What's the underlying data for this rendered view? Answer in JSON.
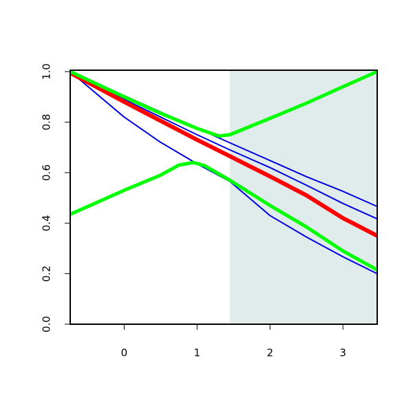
{
  "chart_data": {
    "type": "line",
    "xlim": [
      -0.74,
      3.47
    ],
    "ylim": [
      0,
      1
    ],
    "xticks": [
      0,
      1,
      2,
      3
    ],
    "yticks": [
      {
        "value": 0,
        "label": "0.0"
      },
      {
        "value": 0.2,
        "label": "0.2"
      },
      {
        "value": 0.4,
        "label": "0.4"
      },
      {
        "value": 0.6,
        "label": "0.6"
      },
      {
        "value": 0.8,
        "label": "0.8"
      },
      {
        "value": 1,
        "label": "1.0"
      }
    ],
    "shaded_region": {
      "x": [
        1.45,
        3.47
      ],
      "color": "#e0ecec"
    },
    "series": [
      {
        "color": "#0000dd",
        "line_width": 2,
        "x": [
          -0.74,
          0,
          0.5,
          1,
          1.45,
          2,
          2.5,
          3,
          3.47
        ],
        "values": [
          1.0,
          0.905,
          0.84,
          0.776,
          0.718,
          0.648,
          0.584,
          0.526,
          0.466
        ]
      },
      {
        "color": "#0000dd",
        "line_width": 2,
        "x": [
          -0.74,
          0,
          0.5,
          1,
          1.45,
          2,
          2.5,
          3,
          3.47
        ],
        "values": [
          1.0,
          0.89,
          0.82,
          0.75,
          0.69,
          0.62,
          0.55,
          0.478,
          0.417
        ]
      },
      {
        "color": "#0000dd",
        "line_width": 2,
        "x": [
          -0.74,
          0,
          0.5,
          1,
          1.45,
          2,
          2.5,
          3,
          3.47
        ],
        "values": [
          1.0,
          0.82,
          0.72,
          0.635,
          0.565,
          0.43,
          0.345,
          0.267,
          0.2
        ]
      },
      {
        "color": "#ff0000",
        "line_width": 6,
        "x": [
          -0.74,
          0,
          0.5,
          1,
          1.45,
          2,
          2.5,
          3,
          3.47
        ],
        "values": [
          0.995,
          0.88,
          0.805,
          0.73,
          0.665,
          0.585,
          0.51,
          0.42,
          0.35
        ]
      },
      {
        "color": "#00ff00",
        "line_width": 5,
        "x": [
          -0.74,
          0,
          0.5,
          1,
          1.3,
          1.45,
          2,
          2.5,
          3,
          3.47
        ],
        "values": [
          1.0,
          0.9,
          0.835,
          0.775,
          0.745,
          0.75,
          0.815,
          0.875,
          0.94,
          1.0
        ]
      },
      {
        "color": "#00ff00",
        "line_width": 5,
        "x": [
          -0.74,
          0,
          0.5,
          0.75,
          0.95,
          1.1,
          1.45,
          2,
          2.5,
          3,
          3.47
        ],
        "values": [
          0.435,
          0.53,
          0.59,
          0.63,
          0.64,
          0.628,
          0.57,
          0.47,
          0.385,
          0.29,
          0.215
        ]
      }
    ]
  }
}
